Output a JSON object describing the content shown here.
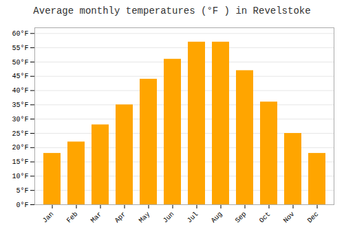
{
  "chart_data": {
    "type": "bar",
    "title": "Average monthly temperatures (°F ) in Revelstoke",
    "categories": [
      "Jan",
      "Feb",
      "Mar",
      "Apr",
      "May",
      "Jun",
      "Jul",
      "Aug",
      "Sep",
      "Oct",
      "Nov",
      "Dec"
    ],
    "values": [
      18,
      22,
      28,
      35,
      44,
      51,
      57,
      57,
      47,
      36,
      25,
      18
    ],
    "color": "#FFA500",
    "ylim": [
      0,
      62
    ],
    "yticks": [
      {
        "value": 0,
        "label": "0°F"
      },
      {
        "value": 5,
        "label": "5°F"
      },
      {
        "value": 10,
        "label": "10°F"
      },
      {
        "value": 15,
        "label": "15°F"
      },
      {
        "value": 20,
        "label": "20°F"
      },
      {
        "value": 25,
        "label": "25°F"
      },
      {
        "value": 30,
        "label": "30°F"
      },
      {
        "value": 35,
        "label": "35°F"
      },
      {
        "value": 40,
        "label": "40°F"
      },
      {
        "value": 45,
        "label": "45°F"
      },
      {
        "value": 50,
        "label": "50°F"
      },
      {
        "value": 55,
        "label": "55°F"
      },
      {
        "value": 60,
        "label": "60°F"
      }
    ],
    "grid": true
  }
}
